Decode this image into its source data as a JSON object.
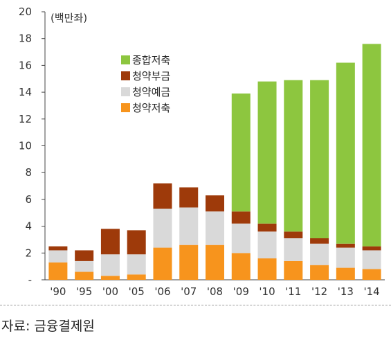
{
  "source_note": "자료: 금융결제원",
  "chart_data": {
    "type": "bar",
    "stacked": true,
    "unit_label": "(백만좌)",
    "categories": [
      "'90",
      "'95",
      "'00",
      "'05",
      "'06",
      "'07",
      "'08",
      "'09",
      "'10",
      "'11",
      "'12",
      "'13",
      "'14"
    ],
    "series": [
      {
        "name": "청약저축",
        "color": "#f7941d",
        "values": [
          1.3,
          0.6,
          0.3,
          0.4,
          2.4,
          2.6,
          2.6,
          2.0,
          1.6,
          1.4,
          1.1,
          0.9,
          0.8
        ]
      },
      {
        "name": "청약예금",
        "color": "#d9d9d9",
        "values": [
          0.9,
          0.8,
          1.6,
          1.5,
          2.9,
          2.8,
          2.5,
          2.2,
          2.0,
          1.7,
          1.6,
          1.5,
          1.4
        ]
      },
      {
        "name": "청약부금",
        "color": "#9e3a0a",
        "values": [
          0.3,
          0.8,
          1.9,
          1.8,
          1.9,
          1.5,
          1.2,
          0.9,
          0.6,
          0.5,
          0.4,
          0.3,
          0.3
        ]
      },
      {
        "name": "종합저축",
        "color": "#8dc63f",
        "values": [
          0,
          0,
          0,
          0,
          0,
          0,
          0,
          8.8,
          10.6,
          11.3,
          11.8,
          13.5,
          15.1
        ]
      }
    ],
    "legend_order": [
      "종합저축",
      "청약부금",
      "청약예금",
      "청약저축"
    ],
    "ylim": [
      0,
      20
    ],
    "yticks": [
      0,
      2,
      4,
      6,
      8,
      10,
      12,
      14,
      16,
      18,
      20
    ],
    "ytick_labels": [
      "-",
      "2",
      "4",
      "6",
      "8",
      "10",
      "12",
      "14",
      "16",
      "18",
      "20"
    ],
    "grid": false,
    "legend_position": "upper-left"
  }
}
